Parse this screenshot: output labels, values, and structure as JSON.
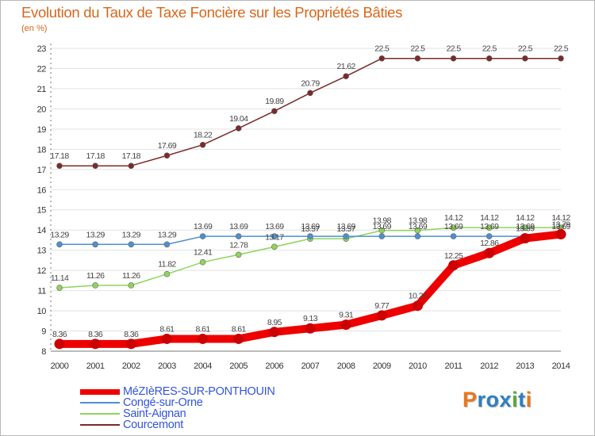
{
  "colors": {
    "title": "#d9661a",
    "grid": "#e2e2e2",
    "axis": "#777777",
    "legend_text": "#3355dd",
    "brand_letters": [
      "#e8771b",
      "#2e7fc1",
      "#2e7fc1",
      "#2e7fc1",
      "#5aa832",
      "#2e7fc1",
      "#e8771b",
      "#2e7fc1"
    ]
  },
  "brand": {
    "name": "Proxiti"
  },
  "chart_data": {
    "type": "line",
    "title": "Evolution du Taux de Taxe Foncière sur les Propriétés Bâties",
    "ylabel": "(en %)",
    "xlabel": "",
    "ylim": [
      8,
      23
    ],
    "grid": true,
    "legend_position": "bottom-left",
    "x": [
      2000,
      2001,
      2002,
      2003,
      2004,
      2005,
      2006,
      2007,
      2008,
      2009,
      2010,
      2011,
      2012,
      2013,
      2014
    ],
    "y_ticks": [
      8,
      9,
      10,
      11,
      12,
      13,
      14,
      15,
      16,
      17,
      18,
      19,
      20,
      21,
      22,
      23
    ],
    "series": [
      {
        "name": "MéZIèRES-SUR-PONTHOUIN",
        "color": "#ee0000",
        "values": [
          8.36,
          8.36,
          8.36,
          8.61,
          8.61,
          8.61,
          8.95,
          9.13,
          9.31,
          9.77,
          10.25,
          12.25,
          12.86,
          13.59,
          13.79
        ],
        "labels": [
          "8.36",
          "8.36",
          "8.36",
          "8.61",
          "8.61",
          "8.61",
          "8.95",
          "9.13",
          "9.31",
          "9.77",
          "10.25",
          "12.25",
          "12.86",
          "13.59",
          "13.79"
        ]
      },
      {
        "name": "Congé-sur-Orne",
        "color": "#4f8fd0",
        "values": [
          13.29,
          13.29,
          13.29,
          13.29,
          13.69,
          13.69,
          13.69,
          13.69,
          13.69,
          13.69,
          13.69,
          13.69,
          13.69,
          13.69,
          13.69
        ],
        "labels": [
          "13.29",
          "13.29",
          "13.29",
          "13.29",
          "13.69",
          "13.69",
          "13.69",
          "13.69",
          "13.69",
          "13.69",
          "13.69",
          "13.69",
          "13.69",
          "13.69",
          "13.69"
        ]
      },
      {
        "name": "Saint-Aignan",
        "color": "#8fd45a",
        "values": [
          11.14,
          11.26,
          11.26,
          11.82,
          12.41,
          12.78,
          13.17,
          13.57,
          13.57,
          13.98,
          13.98,
          14.12,
          14.12,
          14.12,
          14.12
        ],
        "labels": [
          "11.14",
          "11.26",
          "11.26",
          "11.82",
          "12.41",
          "12.78",
          "13.17",
          "13.57",
          "13.57",
          "13.98",
          "13.98",
          "14.12",
          "14.12",
          "14.12",
          "14.12"
        ]
      },
      {
        "name": "Courcemont",
        "color": "#7a2a2a",
        "values": [
          17.18,
          17.18,
          17.18,
          17.69,
          18.22,
          19.04,
          19.89,
          20.79,
          21.62,
          22.5,
          22.5,
          22.5,
          22.5,
          22.5,
          22.5
        ],
        "labels": [
          "17.18",
          "17.18",
          "17.18",
          "17.69",
          "18.22",
          "19.04",
          "19.89",
          "20.79",
          "21.62",
          "22.5",
          "22.5",
          "22.5",
          "22.5",
          "22.5",
          "22.5"
        ]
      }
    ]
  }
}
